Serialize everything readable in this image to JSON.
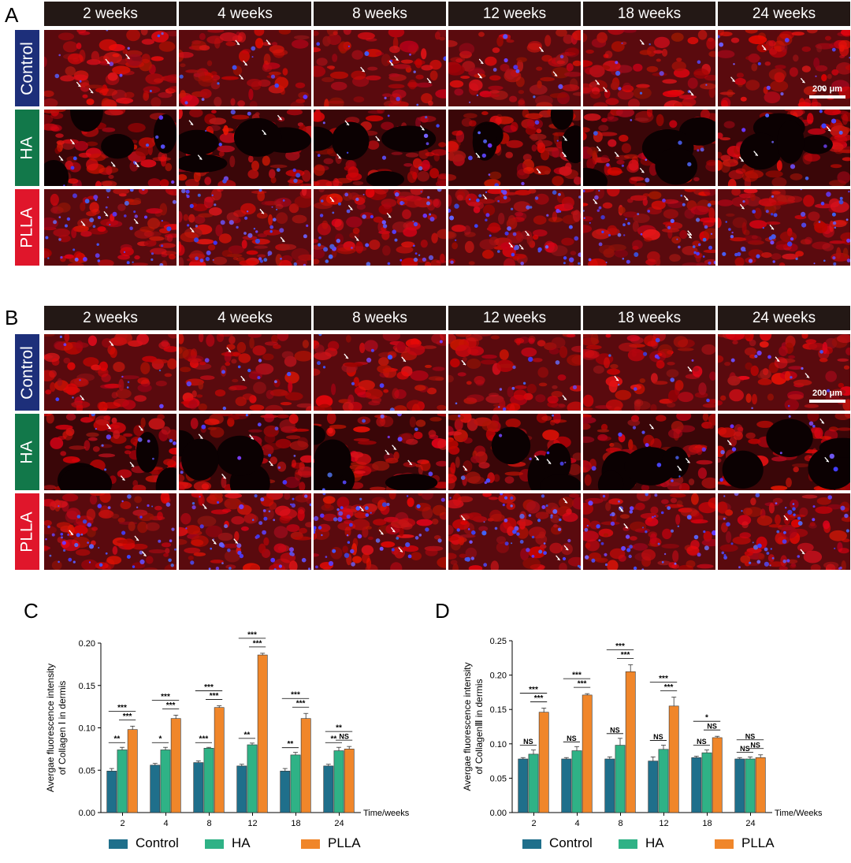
{
  "panels": {
    "A": {
      "letter": "A"
    },
    "B": {
      "letter": "B"
    },
    "C": {
      "letter": "C"
    },
    "D": {
      "letter": "D"
    }
  },
  "time_headers": [
    "2 weeks",
    "4 weeks",
    "8 weeks",
    "12 weeks",
    "18 weeks",
    "24 weeks"
  ],
  "group_labels": [
    "Control",
    "HA",
    "PLLA"
  ],
  "colors": {
    "control_label": "#1d2f7a",
    "ha_label": "#12784a",
    "plla_label": "#e0162b",
    "header_bg": "#231815",
    "series_control": "#1f6f8b",
    "series_ha": "#2fb286",
    "series_plla": "#f0862a"
  },
  "scale_bar": {
    "text": "200 μm"
  },
  "chart_data": [
    {
      "type": "bar",
      "panel": "C",
      "ylabel_lines": [
        "Avergae fluorescence intensity",
        "of Collagen Ⅰ in dermis"
      ],
      "xlabel": "Time/weeks",
      "categories": [
        "2",
        "4",
        "8",
        "12",
        "18",
        "24"
      ],
      "ylim": [
        0,
        0.2
      ],
      "yticks": [
        "0.00",
        "0.05",
        "0.10",
        "0.15",
        "0.20"
      ],
      "series": [
        {
          "name": "Control",
          "values": [
            0.049,
            0.056,
            0.059,
            0.055,
            0.049,
            0.055
          ],
          "errors": [
            0.003,
            0.002,
            0.002,
            0.002,
            0.003,
            0.002
          ]
        },
        {
          "name": "HA",
          "values": [
            0.074,
            0.074,
            0.076,
            0.08,
            0.068,
            0.073
          ],
          "errors": [
            0.003,
            0.003,
            0.001,
            0.002,
            0.003,
            0.004
          ]
        },
        {
          "name": "PLLA",
          "values": [
            0.098,
            0.111,
            0.124,
            0.186,
            0.111,
            0.075
          ],
          "errors": [
            0.004,
            0.004,
            0.002,
            0.002,
            0.006,
            0.003
          ]
        }
      ],
      "significance": [
        [
          "**",
          "***",
          "***"
        ],
        [
          "*",
          "***",
          "***"
        ],
        [
          "***",
          "***",
          "***"
        ],
        [
          "**",
          "***",
          "***"
        ],
        [
          "**",
          "***",
          "***"
        ],
        [
          "**",
          "**",
          "NS"
        ]
      ]
    },
    {
      "type": "bar",
      "panel": "D",
      "ylabel_lines": [
        "Avergae fluorescence intensity",
        "of CollagenⅢ in dermis"
      ],
      "xlabel": "Time/Weeks",
      "categories": [
        "2",
        "4",
        "8",
        "12",
        "18",
        "24"
      ],
      "ylim": [
        0,
        0.25
      ],
      "yticks": [
        "0.00",
        "0.05",
        "0.10",
        "0.15",
        "0.20",
        "0.25"
      ],
      "series": [
        {
          "name": "Control",
          "values": [
            0.078,
            0.078,
            0.078,
            0.075,
            0.08,
            0.078
          ],
          "errors": [
            0.002,
            0.002,
            0.003,
            0.006,
            0.002,
            0.002
          ]
        },
        {
          "name": "HA",
          "values": [
            0.085,
            0.09,
            0.098,
            0.092,
            0.087,
            0.078
          ],
          "errors": [
            0.006,
            0.006,
            0.01,
            0.006,
            0.004,
            0.003
          ]
        },
        {
          "name": "PLLA",
          "values": [
            0.146,
            0.171,
            0.205,
            0.155,
            0.109,
            0.08
          ],
          "errors": [
            0.006,
            0.002,
            0.01,
            0.013,
            0.002,
            0.004
          ]
        }
      ],
      "significance": [
        [
          "NS",
          "***",
          "***"
        ],
        [
          "NS",
          "***",
          "***"
        ],
        [
          "NS",
          "***",
          "***"
        ],
        [
          "NS",
          "***",
          "***"
        ],
        [
          "NS",
          "*",
          "NS"
        ],
        [
          "NS",
          "NS",
          "NS"
        ]
      ]
    }
  ]
}
